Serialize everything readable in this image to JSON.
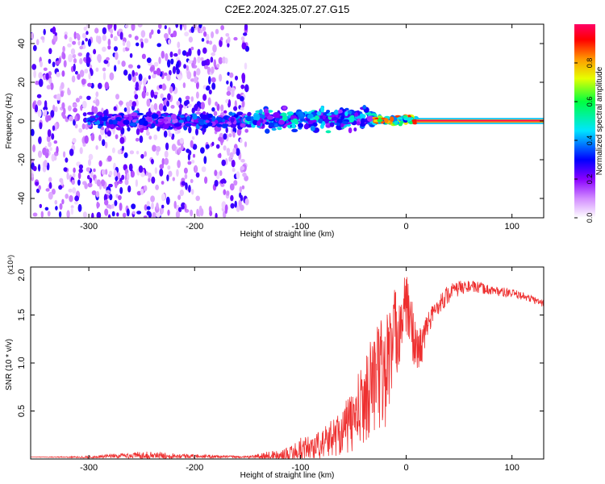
{
  "title": "C2E2.2024.325.07.27.G15",
  "chart_data": [
    {
      "type": "heatmap",
      "xlabel": "Height of straight line (km)",
      "ylabel": "Frequency (Hz)",
      "xlim": [
        -355,
        130
      ],
      "ylim": [
        -50,
        50
      ],
      "x_ticks": [
        -300,
        -200,
        -100,
        0,
        100
      ],
      "y_ticks": [
        -40,
        -20,
        0,
        20,
        40
      ],
      "colorbar": {
        "label": "Normalized spectral amplitude",
        "range": [
          0,
          1
        ],
        "ticks": [
          "0.0",
          "0.2",
          "0.4",
          "0.6",
          "0.8"
        ],
        "colors": [
          "#ffffff",
          "#d28cff",
          "#8a00ff",
          "#0000ff",
          "#00e5ff",
          "#00ff40",
          "#e6ff00",
          "#ff9900",
          "#ff0000",
          "#ff0066"
        ]
      },
      "regions": [
        {
          "x": [
            -355,
            -150
          ],
          "pattern": "scattered noise",
          "freq_range": [
            -50,
            50
          ],
          "amplitude": 0.2
        },
        {
          "x": [
            -300,
            -150
          ],
          "pattern": "band",
          "freq_range": [
            -5,
            5
          ],
          "amplitude": 0.3
        },
        {
          "x": [
            -150,
            -30
          ],
          "pattern": "band",
          "freq_range": [
            -6,
            8
          ],
          "amplitude": 0.4
        },
        {
          "x": [
            -30,
            10
          ],
          "pattern": "band",
          "freq_range": [
            -2,
            3
          ],
          "amplitude": 0.7
        },
        {
          "x": [
            10,
            130
          ],
          "pattern": "line",
          "freq_range": [
            0,
            0
          ],
          "amplitude": 1.0
        }
      ]
    },
    {
      "type": "line",
      "xlabel": "Height of straight line (km)",
      "ylabel": "SNR (10 * v/v)",
      "y_multiplier": "(x10⁴)",
      "xlim": [
        -355,
        130
      ],
      "ylim": [
        0,
        2.0
      ],
      "x_ticks": [
        -300,
        -200,
        -100,
        0,
        100
      ],
      "y_ticks": [
        "0.5",
        "1.0",
        "1.5",
        "2.0"
      ],
      "color": "#ee3030",
      "series": [
        {
          "x": [
            -355,
            -300,
            -250,
            -200,
            -150,
            -110,
            -100,
            -80,
            -60,
            -50,
            -40,
            -30,
            -20,
            -15,
            -10,
            -5,
            0,
            5,
            10,
            15,
            20,
            30,
            40,
            50,
            60,
            70,
            80,
            90,
            100,
            110,
            120,
            130
          ],
          "values": [
            0.02,
            0.02,
            0.04,
            0.03,
            0.02,
            0.05,
            0.1,
            0.15,
            0.3,
            0.4,
            0.6,
            0.85,
            0.9,
            1.1,
            1.3,
            1.45,
            1.6,
            1.4,
            1.1,
            1.2,
            1.4,
            1.6,
            1.72,
            1.78,
            1.8,
            1.78,
            1.76,
            1.74,
            1.72,
            1.7,
            1.66,
            1.62
          ],
          "spread": [
            0.0,
            0.01,
            0.04,
            0.02,
            0.01,
            0.08,
            0.12,
            0.15,
            0.25,
            0.35,
            0.45,
            0.55,
            0.65,
            0.6,
            0.5,
            0.4,
            0.35,
            0.3,
            0.3,
            0.2,
            0.12,
            0.1,
            0.1,
            0.08,
            0.06,
            0.06,
            0.05,
            0.05,
            0.05,
            0.04,
            0.04,
            0.04
          ]
        }
      ]
    }
  ]
}
